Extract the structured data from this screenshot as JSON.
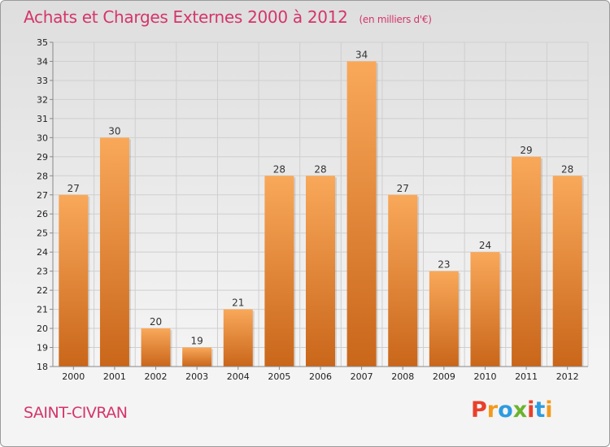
{
  "header": {
    "title": "Achats et Charges Externes 2000 à 2012",
    "unit": "(en milliers d'€)"
  },
  "footer": {
    "commune": "SAINT-CIVRAN",
    "logo": "Proxiti",
    "logo_colors": [
      "#e8402a",
      "#f39a1c",
      "#2e9be0",
      "#6ab42d",
      "#e8402a",
      "#2e9be0",
      "#f39a1c"
    ]
  },
  "colors": {
    "bar_light": "#f9a85a",
    "bar_dark": "#c9661a",
    "grid": "#cfcfcf",
    "axis": "#888888"
  },
  "chart_data": {
    "type": "bar",
    "title": "Achats et Charges Externes 2000 à 2012",
    "xlabel": "",
    "ylabel": "",
    "categories": [
      "2000",
      "2001",
      "2002",
      "2003",
      "2004",
      "2005",
      "2006",
      "2007",
      "2008",
      "2009",
      "2010",
      "2011",
      "2012"
    ],
    "values": [
      27,
      30,
      20,
      19,
      21,
      28,
      28,
      34,
      27,
      23,
      24,
      29,
      28
    ],
    "ylim": [
      18,
      35
    ],
    "yticks": [
      "18",
      "19",
      "20",
      "21",
      "22",
      "23",
      "24",
      "25",
      "26",
      "27",
      "28",
      "29",
      "30",
      "31",
      "32",
      "33",
      "34",
      "35"
    ],
    "grid": true,
    "legend": "none"
  }
}
